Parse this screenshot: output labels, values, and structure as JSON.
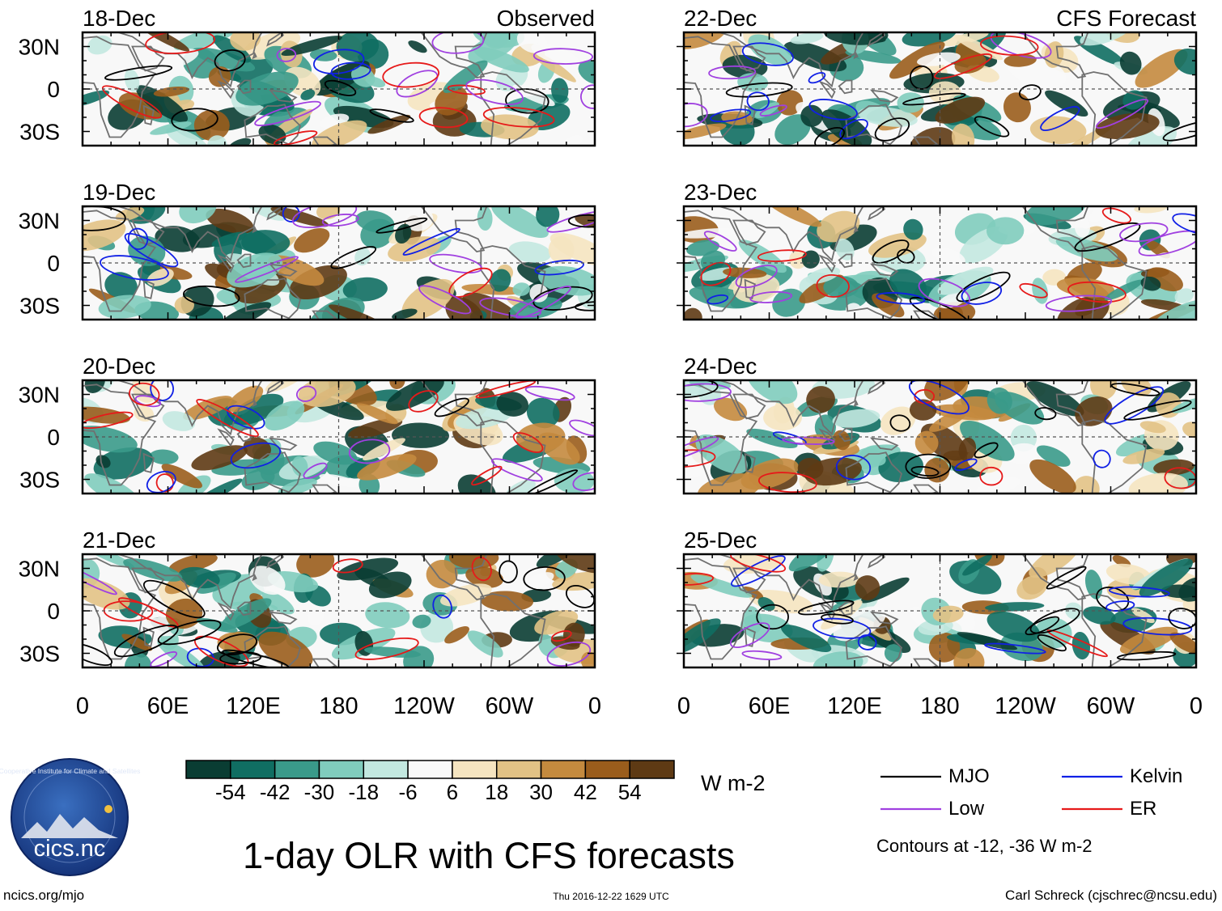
{
  "chart_data": {
    "type": "heatmap",
    "title": "1-day OLR with CFS forecasts",
    "column_titles": {
      "left": "Observed",
      "right": "CFS Forecast"
    },
    "panels": [
      {
        "date": "18-Dec",
        "source": "Observed"
      },
      {
        "date": "19-Dec",
        "source": "Observed"
      },
      {
        "date": "20-Dec",
        "source": "Observed"
      },
      {
        "date": "21-Dec",
        "source": "Observed"
      },
      {
        "date": "22-Dec",
        "source": "CFS Forecast"
      },
      {
        "date": "23-Dec",
        "source": "CFS Forecast"
      },
      {
        "date": "24-Dec",
        "source": "CFS Forecast"
      },
      {
        "date": "25-Dec",
        "source": "CFS Forecast"
      }
    ],
    "y_ticks": [
      "30N",
      "0",
      "30S"
    ],
    "x_ticks": [
      "0",
      "60E",
      "120E",
      "180",
      "120W",
      "60W",
      "0"
    ],
    "colorbar": {
      "units": "W m-2",
      "labels": [
        "-54",
        "-42",
        "-30",
        "-18",
        "-6",
        "6",
        "18",
        "30",
        "42",
        "54"
      ],
      "colors": [
        "#0a3d33",
        "#106e62",
        "#3a9a8a",
        "#80ccbd",
        "#c3e8e0",
        "#f8f8f8",
        "#f5e4c0",
        "#e2c285",
        "#c48a3e",
        "#9a5d1c",
        "#5e3a14"
      ]
    },
    "legend": [
      {
        "label": "MJO",
        "color": "#000000"
      },
      {
        "label": "Kelvin",
        "color": "#1020e6"
      },
      {
        "label": "Low",
        "color": "#a040e0"
      },
      {
        "label": "ER",
        "color": "#e61a1a"
      }
    ],
    "contour_note": "Contours at -12, -36 W m-2"
  },
  "footer": {
    "logo_text": "cics.nc",
    "logo_ring_text": "Cooperative Institute for Climate and Satellites",
    "website": "ncics.org/mjo",
    "timestamp": "Thu 2016-12-22 1629 UTC",
    "credit": "Carl Schreck (cjschrec@ncsu.edu)"
  },
  "colors": {
    "land_outline": "#707070",
    "equator_line": "#555555"
  }
}
